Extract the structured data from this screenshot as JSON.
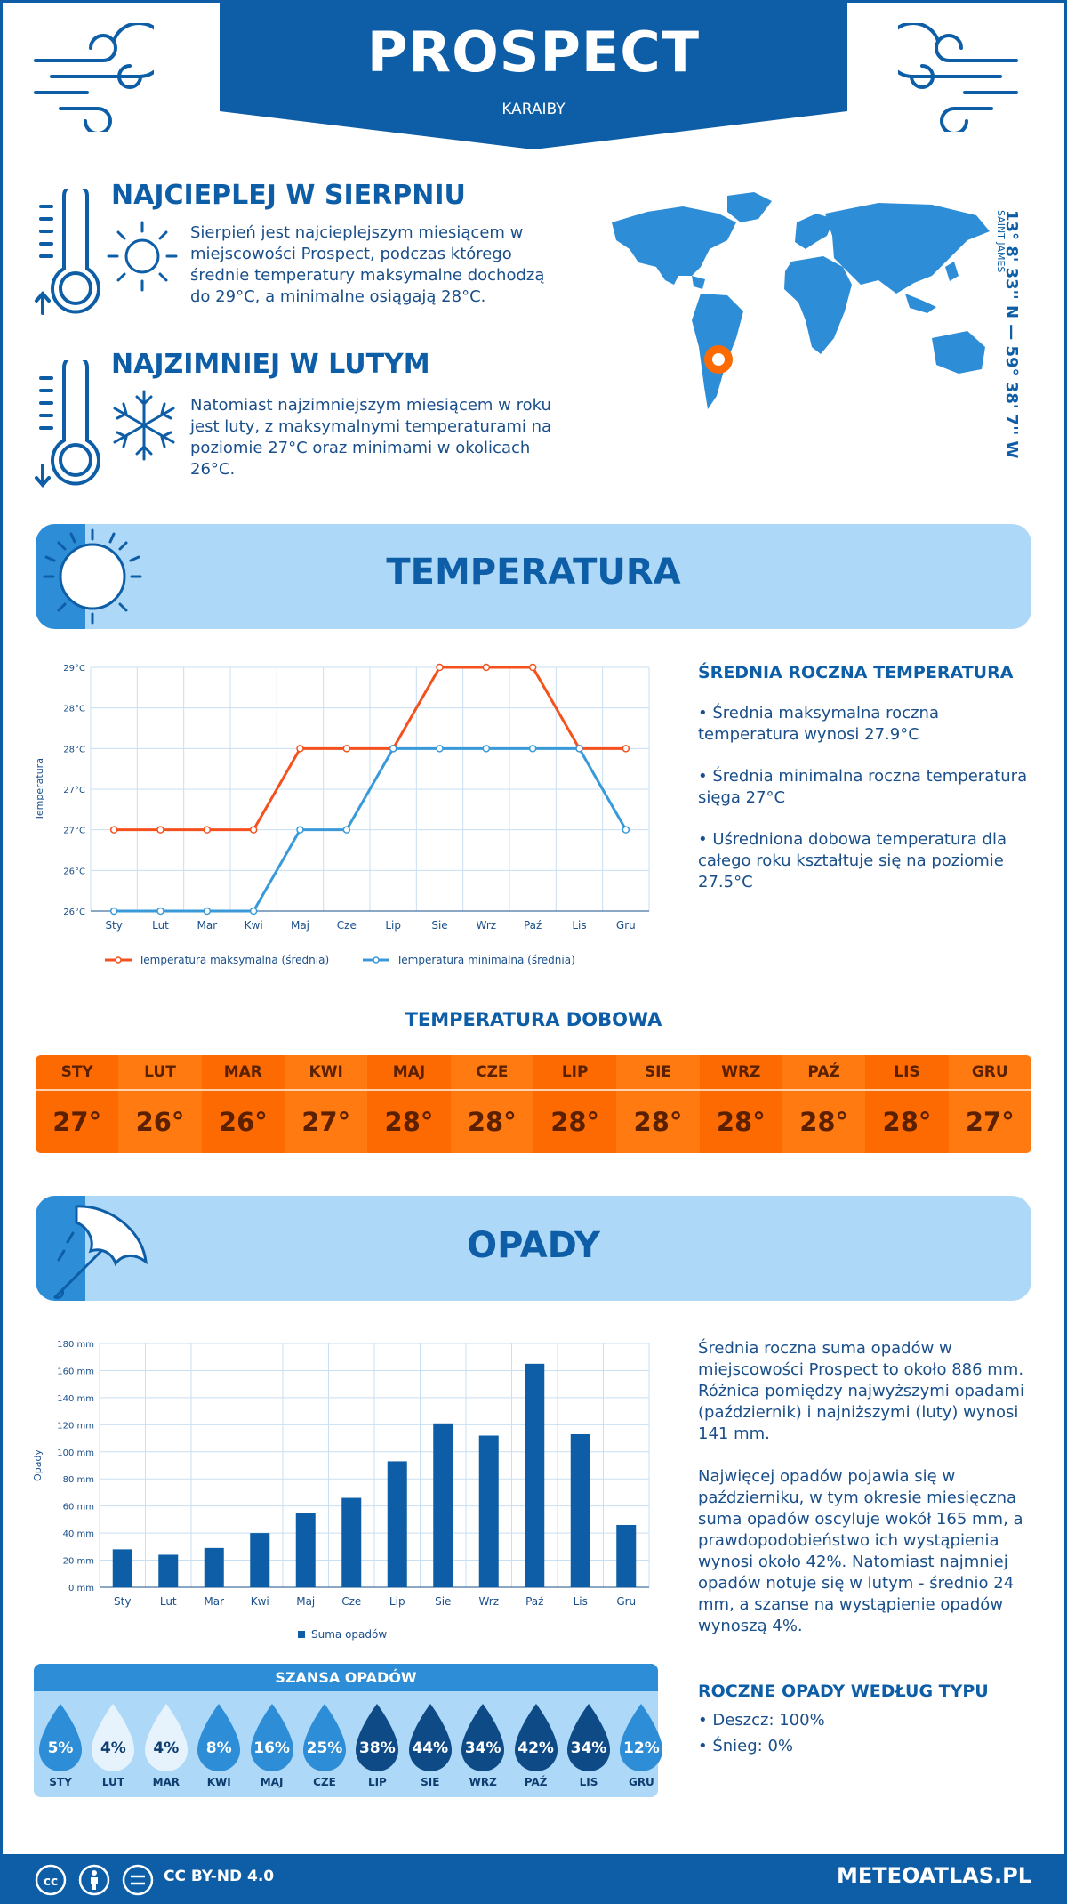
{
  "header": {
    "title": "PROSPECT",
    "region": "KARAIBY"
  },
  "location": {
    "coordinates": "13° 8' 33'' N — 59° 38' 7'' W",
    "place": "SAINT JAMES"
  },
  "warmest": {
    "heading": "NAJCIEPLEJ W SIERPNIU",
    "text_lines": [
      "Sierpień jest najcieplejszym miesiącem w",
      "miejscowości Prospect, podczas którego",
      "średnie temperatury maksymalne dochodzą",
      "do 29°C, a minimalne osiągają 28°C."
    ]
  },
  "coldest": {
    "heading": "NAJZIMNIEJ W LUTYM",
    "text_lines": [
      "Natomiast najzimniejszym miesiącem w roku",
      "jest luty, z maksymalnymi temperaturami na",
      "poziomie 27°C oraz minimami w okolicach",
      "26°C."
    ]
  },
  "temperature_section": {
    "title": "TEMPERATURA",
    "side_heading": "ŚREDNIA ROCZNA TEMPERATURA",
    "bullets": [
      [
        "• Średnia maksymalna roczna",
        "temperatura wynosi 27.9°C"
      ],
      [
        "• Średnia minimalna roczna temperatura",
        "sięga 27°C"
      ],
      [
        "• Uśredniona dobowa temperatura dla",
        "całego roku kształtuje się na poziomie",
        "27.5°C"
      ]
    ]
  },
  "daily": {
    "heading": "TEMPERATURA DOBOWA",
    "months": [
      "STY",
      "LUT",
      "MAR",
      "KWI",
      "MAJ",
      "CZE",
      "LIP",
      "SIE",
      "WRZ",
      "PAŹ",
      "LIS",
      "GRU"
    ],
    "values": [
      "27°",
      "26°",
      "26°",
      "27°",
      "28°",
      "28°",
      "28°",
      "28°",
      "28°",
      "28°",
      "28°",
      "27°"
    ],
    "colors": [
      "#fd6a02",
      "#ff7a10",
      "#fd6a02",
      "#ff7a10",
      "#fd6a02",
      "#ff7a10",
      "#fd6a02",
      "#ff7a10",
      "#fd6a02",
      "#ff7a10",
      "#fd6a02",
      "#ff7a10"
    ]
  },
  "precip_section": {
    "title": "OPADY",
    "text_block1": [
      "Średnia roczna suma opadów w",
      "miejscowości Prospect to około 886 mm.",
      "Różnica pomiędzy najwyższymi opadami",
      "(październik) i najniższymi (luty) wynosi",
      "141 mm."
    ],
    "text_block2": [
      "Najwięcej opadów pojawia się w",
      "październiku, w tym okresie miesięczna",
      "suma opadów oscyluje wokół 165 mm, a",
      "prawdopodobieństwo ich wystąpienia",
      "wynosi około 42%. Natomiast najmniej",
      "opadów notuje się w lutym - średnio 24",
      "mm, a szanse na wystąpienie opadów",
      "wynoszą 4%."
    ],
    "type_heading": "ROCZNE OPADY WEDŁUG TYPU",
    "types": [
      "• Deszcz: 100%",
      "• Śnieg: 0%"
    ]
  },
  "chance": {
    "heading": "SZANSA OPADÓW",
    "months": [
      "STY",
      "LUT",
      "MAR",
      "KWI",
      "MAJ",
      "CZE",
      "LIP",
      "SIE",
      "WRZ",
      "PAŹ",
      "LIS",
      "GRU"
    ],
    "values": [
      "5%",
      "4%",
      "4%",
      "8%",
      "16%",
      "25%",
      "38%",
      "44%",
      "34%",
      "42%",
      "34%",
      "12%"
    ],
    "colors": [
      "#2d8dd6",
      "#e6f3fd",
      "#e6f3fd",
      "#2d8dd6",
      "#2d8dd6",
      "#2d8dd6",
      "#0d4a86",
      "#0d4a86",
      "#0d4a86",
      "#0d4a86",
      "#0d4a86",
      "#2d8dd6"
    ],
    "text_colors": [
      "#ffffff",
      "#0d3c6e",
      "#0d3c6e",
      "#ffffff",
      "#ffffff",
      "#ffffff",
      "#ffffff",
      "#ffffff",
      "#ffffff",
      "#ffffff",
      "#ffffff",
      "#ffffff"
    ]
  },
  "footer": {
    "license": "CC BY-ND 4.0",
    "brand": "METEOATLAS.PL"
  },
  "chart_data": [
    {
      "type": "line",
      "categories": [
        "Sty",
        "Lut",
        "Mar",
        "Kwi",
        "Maj",
        "Cze",
        "Lip",
        "Sie",
        "Wrz",
        "Paź",
        "Lis",
        "Gru"
      ],
      "series": [
        {
          "name": "Temperatura maksymalna (średnia)",
          "values": [
            27,
            27,
            27,
            27,
            28,
            28,
            28,
            29,
            29,
            29,
            28,
            28
          ],
          "color": "#f4511e"
        },
        {
          "name": "Temperatura minimalna (średnia)",
          "values": [
            26,
            26,
            26,
            26,
            27,
            27,
            28,
            28,
            28,
            28,
            28,
            27
          ],
          "color": "#3a9ad9"
        }
      ],
      "ylabel": "Temperatura",
      "yticks": [
        "29°C",
        "28°C",
        "28°C",
        "27°C",
        "27°C",
        "26°C",
        "26°C"
      ],
      "ylim": [
        26,
        29
      ],
      "grid": true,
      "legend": "bottom"
    },
    {
      "type": "bar",
      "categories": [
        "Sty",
        "Lut",
        "Mar",
        "Kwi",
        "Maj",
        "Cze",
        "Lip",
        "Sie",
        "Wrz",
        "Paź",
        "Lis",
        "Gru"
      ],
      "series": [
        {
          "name": "Suma opadów",
          "values": [
            28,
            24,
            29,
            40,
            55,
            66,
            93,
            121,
            112,
            165,
            113,
            46
          ],
          "color": "#0d5ea6"
        }
      ],
      "ylabel": "Opady",
      "yticks": [
        "180 mm",
        "160 mm",
        "140 mm",
        "120 mm",
        "100 mm",
        "80 mm",
        "60 mm",
        "40 mm",
        "20 mm",
        "0 mm"
      ],
      "ylim": [
        0,
        180
      ],
      "grid": true,
      "legend": "bottom"
    }
  ]
}
